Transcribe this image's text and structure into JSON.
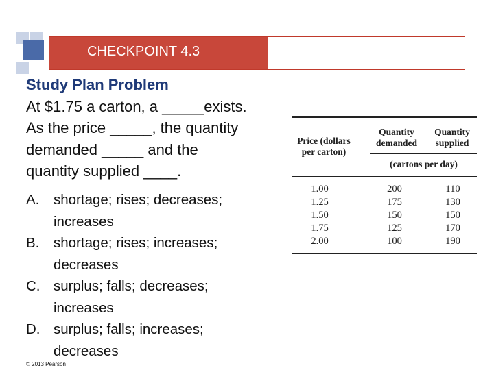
{
  "header": {
    "title": "CHECKPOINT 4.3"
  },
  "question": {
    "title": "Study Plan Problem",
    "lines": [
      "At $1.75 a carton, a _____exists.",
      "As the price _____, the quantity",
      "demanded _____ and the",
      "quantity supplied ____."
    ]
  },
  "answers": [
    {
      "letter": "A.",
      "text": "shortage; rises; decreases; increases"
    },
    {
      "letter": "B.",
      "text": "shortage; rises; increases; decreases"
    },
    {
      "letter": "C.",
      "text": "surplus; falls; decreases; increases"
    },
    {
      "letter": "D.",
      "text": "surplus; falls; increases; decreases"
    }
  ],
  "table": {
    "headers": {
      "price": "Price (dollars per carton)",
      "quantity_demanded": "Quantity demanded",
      "quantity_supplied": "Quantity supplied",
      "units": "(cartons per day)"
    },
    "rows": [
      {
        "price": "1.00",
        "qd": "200",
        "qs": "110"
      },
      {
        "price": "1.25",
        "qd": "175",
        "qs": "130"
      },
      {
        "price": "1.50",
        "qd": "150",
        "qs": "150"
      },
      {
        "price": "1.75",
        "qd": "125",
        "qs": "170"
      },
      {
        "price": "2.00",
        "qd": "100",
        "qs": "190"
      }
    ]
  },
  "footer": {
    "copyright": "© 2013 Pearson"
  },
  "colors": {
    "header_red": "#c8473a",
    "title_blue": "#1f3a78",
    "deco_blue": "#4a6aa8"
  }
}
